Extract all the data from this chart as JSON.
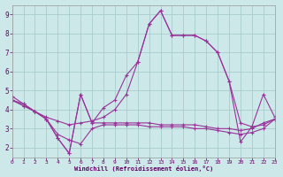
{
  "x": [
    0,
    1,
    2,
    3,
    4,
    5,
    6,
    7,
    8,
    9,
    10,
    11,
    12,
    13,
    14,
    15,
    16,
    17,
    18,
    19,
    20,
    21,
    22,
    23
  ],
  "line1": [
    4.7,
    4.3,
    3.9,
    3.6,
    3.4,
    3.2,
    3.3,
    3.4,
    3.6,
    4.0,
    4.8,
    6.5,
    8.5,
    9.2,
    7.9,
    7.9,
    7.9,
    7.6,
    7.0,
    5.5,
    3.3,
    3.1,
    3.2,
    3.5
  ],
  "line2": [
    4.5,
    4.3,
    3.9,
    3.5,
    2.5,
    1.7,
    4.8,
    3.3,
    3.3,
    3.3,
    3.3,
    3.3,
    3.3,
    3.2,
    3.2,
    3.2,
    3.2,
    3.1,
    3.0,
    3.0,
    2.9,
    3.0,
    3.3,
    3.5
  ],
  "line3": [
    4.5,
    4.2,
    3.9,
    3.5,
    2.7,
    2.4,
    2.2,
    3.0,
    3.2,
    3.2,
    3.2,
    3.2,
    3.1,
    3.1,
    3.1,
    3.1,
    3.0,
    3.0,
    2.9,
    2.8,
    2.7,
    2.8,
    3.0,
    3.5
  ],
  "line4": [
    4.5,
    4.2,
    3.9,
    3.5,
    2.5,
    1.7,
    4.8,
    3.3,
    4.1,
    4.5,
    5.8,
    6.5,
    8.5,
    9.2,
    7.9,
    7.9,
    7.9,
    7.6,
    7.0,
    5.5,
    2.3,
    3.1,
    4.8,
    3.6
  ],
  "line_color": "#993399",
  "bg_color": "#cce8e8",
  "grid_color": "#aacccc",
  "xlabel": "Windchill (Refroidissement éolien,°C)",
  "xlabel_color": "#660066",
  "tick_color": "#660066",
  "ylim": [
    1.5,
    9.5
  ],
  "xlim": [
    0,
    23
  ],
  "yticks": [
    2,
    3,
    4,
    5,
    6,
    7,
    8,
    9
  ],
  "xticks": [
    0,
    1,
    2,
    3,
    4,
    5,
    6,
    7,
    8,
    9,
    10,
    11,
    12,
    13,
    14,
    15,
    16,
    17,
    18,
    19,
    20,
    21,
    22,
    23
  ]
}
